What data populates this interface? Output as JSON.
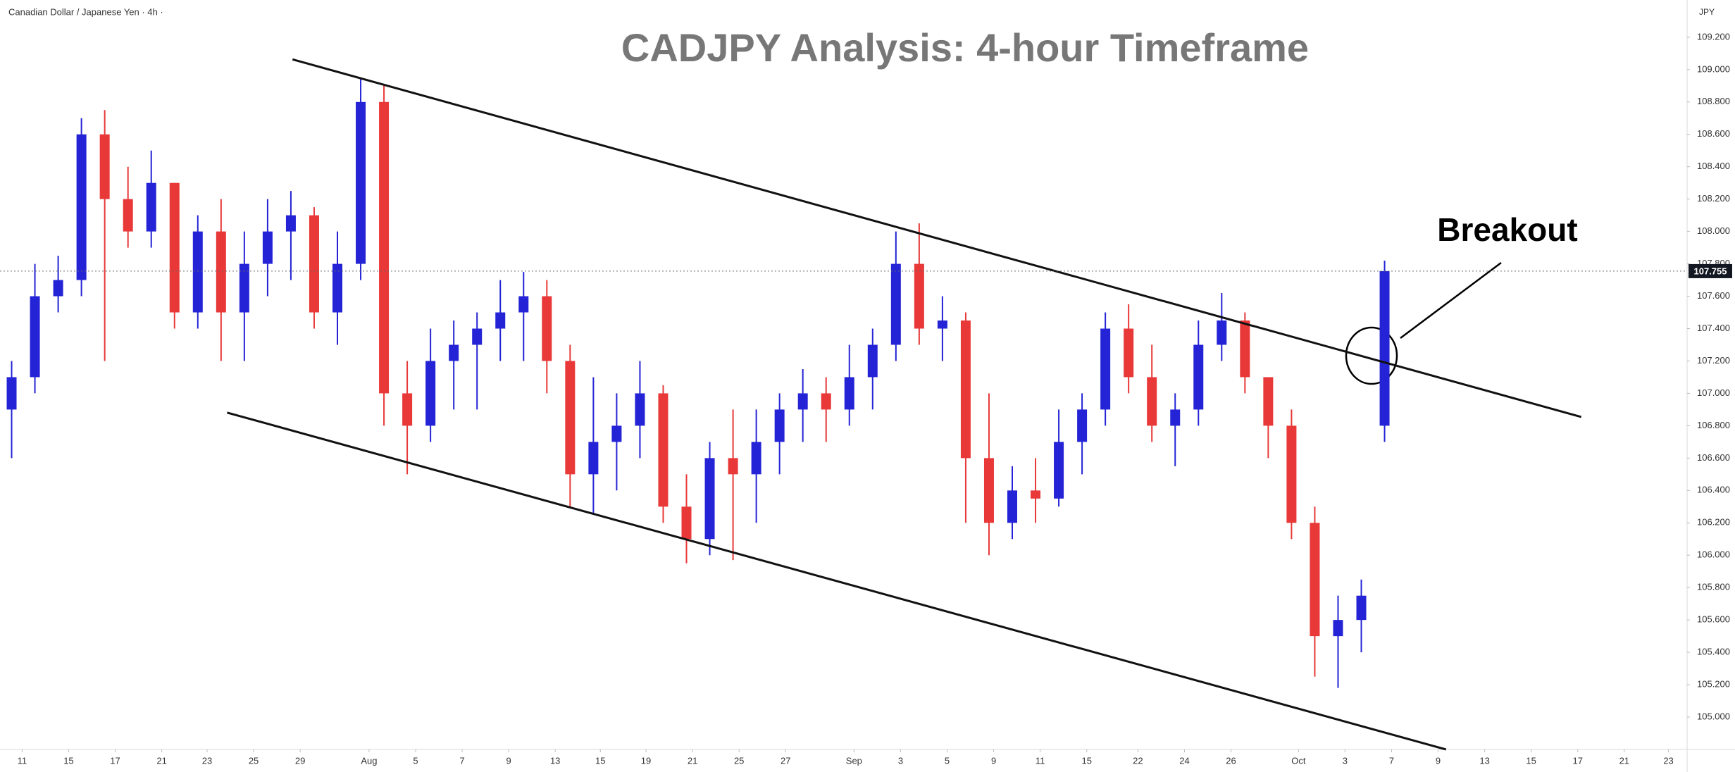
{
  "chart_data": {
    "type": "candlestick",
    "header": "Canadian Dollar / Japanese Yen · 4h ·",
    "title": "CADJPY Analysis: 4-hour Timeframe",
    "currency": "JPY",
    "annotation": "Breakout",
    "up_color": "#2424d6",
    "down_color": "#e83838",
    "grid": false,
    "x": [
      0.5,
      1.5,
      2.5,
      3.5,
      4.5,
      5.5,
      6.5,
      7.5,
      8.5,
      9.5,
      10.5,
      11.5,
      12.5,
      13.5,
      14.5,
      15.5,
      16.5,
      17.5,
      18.5,
      19.5,
      20.5,
      21.5,
      22.5,
      23.5,
      24.5,
      25.5,
      26.5,
      27.5,
      28.5,
      29.5,
      30.5,
      31.5,
      32.5,
      33.5,
      34.5,
      35.5,
      36.5,
      37.5,
      38.5,
      39.5,
      40.5,
      41.5,
      42.5,
      43.5,
      44.5,
      45.5,
      46.5,
      47.5,
      48.5,
      49.5,
      50.5,
      51.5,
      52.5,
      53.5,
      54.5,
      55.5,
      56.5,
      57.5,
      58.5,
      59.5
    ],
    "open": [
      106.9,
      107.1,
      107.6,
      107.7,
      108.6,
      108.2,
      108.0,
      108.3,
      107.5,
      108.0,
      107.5,
      107.8,
      108.0,
      108.1,
      107.5,
      107.8,
      108.8,
      107.0,
      106.8,
      107.2,
      107.3,
      107.4,
      107.5,
      107.6,
      107.2,
      106.5,
      106.7,
      106.8,
      107.0,
      106.3,
      106.1,
      106.6,
      106.5,
      106.7,
      106.9,
      107.0,
      106.9,
      107.1,
      107.3,
      107.8,
      107.4,
      107.45,
      106.6,
      106.2,
      106.4,
      106.35,
      106.7,
      106.9,
      107.4,
      107.1,
      106.8,
      106.9,
      107.3,
      107.45,
      107.1,
      106.8,
      106.2,
      105.5,
      105.6,
      106.8
    ],
    "high": [
      107.2,
      107.8,
      107.85,
      108.7,
      108.75,
      108.4,
      108.5,
      108.3,
      108.1,
      108.2,
      108.0,
      108.2,
      108.25,
      108.15,
      108.0,
      108.95,
      108.9,
      107.2,
      107.4,
      107.45,
      107.5,
      107.7,
      107.75,
      107.7,
      107.3,
      107.1,
      107.0,
      107.2,
      107.05,
      106.5,
      106.7,
      106.9,
      106.9,
      107.0,
      107.15,
      107.1,
      107.3,
      107.4,
      108.0,
      108.05,
      107.6,
      107.5,
      107.0,
      106.55,
      106.6,
      106.9,
      107.0,
      107.5,
      107.55,
      107.3,
      107.0,
      107.45,
      107.62,
      107.5,
      107.1,
      106.9,
      106.3,
      105.75,
      105.85,
      107.82
    ],
    "low": [
      106.6,
      107.0,
      107.5,
      107.6,
      107.2,
      107.9,
      107.9,
      107.4,
      107.4,
      107.2,
      107.2,
      107.6,
      107.7,
      107.4,
      107.3,
      107.7,
      106.8,
      106.5,
      106.7,
      106.9,
      106.9,
      107.2,
      107.2,
      107.0,
      106.3,
      106.25,
      106.4,
      106.6,
      106.2,
      105.95,
      106.0,
      105.97,
      106.2,
      106.5,
      106.7,
      106.7,
      106.8,
      106.9,
      107.2,
      107.3,
      107.2,
      106.2,
      106.0,
      106.1,
      106.2,
      106.3,
      106.5,
      106.8,
      107.0,
      106.7,
      106.55,
      106.8,
      107.2,
      107.0,
      106.6,
      106.1,
      105.25,
      105.18,
      105.4,
      106.7
    ],
    "close": [
      107.1,
      107.6,
      107.7,
      108.6,
      108.2,
      108.0,
      108.3,
      107.5,
      108.0,
      107.5,
      107.8,
      108.0,
      108.1,
      107.5,
      107.8,
      108.8,
      107.0,
      106.8,
      107.2,
      107.3,
      107.4,
      107.5,
      107.6,
      107.2,
      106.5,
      106.7,
      106.8,
      107.0,
      106.3,
      106.1,
      106.6,
      106.5,
      106.7,
      106.9,
      107.0,
      106.9,
      107.1,
      107.3,
      107.8,
      107.4,
      107.45,
      106.6,
      106.2,
      106.4,
      106.35,
      106.7,
      106.9,
      107.4,
      107.1,
      106.8,
      106.9,
      107.3,
      107.45,
      107.1,
      106.8,
      106.2,
      105.5,
      105.6,
      105.75,
      107.755
    ],
    "last_price": {
      "value": 107.755,
      "label": "107.755"
    },
    "trendlines": [
      {
        "x": [
          12.57,
          67.95
        ],
        "y": [
          109.063,
          106.854
        ]
      },
      {
        "x": [
          9.76,
          62.14
        ],
        "y": [
          106.881,
          104.8
        ]
      }
    ],
    "xlim": [
      0,
      72.5
    ],
    "xticks": [
      {
        "value": 0.95,
        "label": "11"
      },
      {
        "value": 2.95,
        "label": "15"
      },
      {
        "value": 4.95,
        "label": "17"
      },
      {
        "value": 6.95,
        "label": "21"
      },
      {
        "value": 8.9,
        "label": "23"
      },
      {
        "value": 10.9,
        "label": "25"
      },
      {
        "value": 12.9,
        "label": "29"
      },
      {
        "value": 15.86,
        "label": "Aug"
      },
      {
        "value": 17.86,
        "label": "5"
      },
      {
        "value": 19.86,
        "label": "7"
      },
      {
        "value": 21.86,
        "label": "9"
      },
      {
        "value": 23.86,
        "label": "13"
      },
      {
        "value": 25.8,
        "label": "15"
      },
      {
        "value": 27.76,
        "label": "19"
      },
      {
        "value": 29.76,
        "label": "21"
      },
      {
        "value": 31.76,
        "label": "25"
      },
      {
        "value": 33.76,
        "label": "27"
      },
      {
        "value": 36.7,
        "label": "Sep"
      },
      {
        "value": 38.7,
        "label": "3"
      },
      {
        "value": 40.7,
        "label": "5"
      },
      {
        "value": 42.7,
        "label": "9"
      },
      {
        "value": 44.7,
        "label": "11"
      },
      {
        "value": 46.7,
        "label": "15"
      },
      {
        "value": 48.9,
        "label": "22"
      },
      {
        "value": 50.9,
        "label": "24"
      },
      {
        "value": 52.9,
        "label": "26"
      },
      {
        "value": 55.8,
        "label": "Oct"
      },
      {
        "value": 57.8,
        "label": "3"
      },
      {
        "value": 59.8,
        "label": "7"
      },
      {
        "value": 61.8,
        "label": "9"
      },
      {
        "value": 63.8,
        "label": "13"
      },
      {
        "value": 65.8,
        "label": "15"
      },
      {
        "value": 67.8,
        "label": "17"
      },
      {
        "value": 69.8,
        "label": "21"
      },
      {
        "value": 71.7,
        "label": "23"
      }
    ],
    "ylim": [
      104.8,
      109.43
    ],
    "yticks": [
      {
        "value": 105.0,
        "label": "105.000"
      },
      {
        "value": 105.2,
        "label": "105.200"
      },
      {
        "value": 105.4,
        "label": "105.400"
      },
      {
        "value": 105.6,
        "label": "105.600"
      },
      {
        "value": 105.8,
        "label": "105.800"
      },
      {
        "value": 106.0,
        "label": "106.000"
      },
      {
        "value": 106.2,
        "label": "106.200"
      },
      {
        "value": 106.4,
        "label": "106.400"
      },
      {
        "value": 106.6,
        "label": "106.600"
      },
      {
        "value": 106.8,
        "label": "106.800"
      },
      {
        "value": 107.0,
        "label": "107.000"
      },
      {
        "value": 107.2,
        "label": "107.200"
      },
      {
        "value": 107.4,
        "label": "107.400"
      },
      {
        "value": 107.6,
        "label": "107.600"
      },
      {
        "value": 107.8,
        "label": "107.800"
      },
      {
        "value": 108.0,
        "label": "108.000"
      },
      {
        "value": 108.2,
        "label": "108.200"
      },
      {
        "value": 108.4,
        "label": "108.400"
      },
      {
        "value": 108.6,
        "label": "108.600"
      },
      {
        "value": 108.8,
        "label": "108.800"
      },
      {
        "value": 109.0,
        "label": "109.000"
      },
      {
        "value": 109.2,
        "label": "109.200"
      }
    ]
  }
}
